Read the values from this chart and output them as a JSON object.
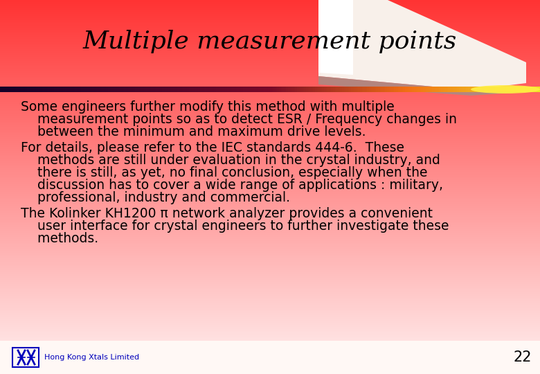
{
  "title": "Multiple measurement points",
  "title_fontsize": 26,
  "title_color": "#000000",
  "body_lines": [
    "Some engineers further modify this method with multiple",
    "    measurement points so as to detect ESR / Frequency changes in",
    "    between the minimum and maximum drive levels.",
    "For details, please refer to the IEC standards 444-6.  These",
    "    methods are still under evaluation in the crystal industry, and",
    "    there is still, as yet, no final conclusion, especially when the",
    "    discussion has to cover a wide range of applications : military,",
    "    professional, industry and commercial.",
    "The Kolinker KH1200 π network analyzer provides a convenient",
    "    user interface for crystal engineers to further investigate these",
    "    methods."
  ],
  "bullet_group_starts": [
    0,
    3,
    8
  ],
  "body_fontsize": 13.5,
  "body_color": "#000000",
  "footer_text": "Hong Kong Xtals Limited",
  "footer_number": "22",
  "footer_logo_color": "#0000bb",
  "bg_red": "#ff3333",
  "bg_pink": "#ffcccc",
  "bg_white": "#ffffff",
  "swoosh_white": "#ffffff",
  "swoosh_cream": "#f0e8e0",
  "bar_dark": "#1a0030",
  "bar_gold": "#ffaa00",
  "bar_yellow": "#ffee44"
}
